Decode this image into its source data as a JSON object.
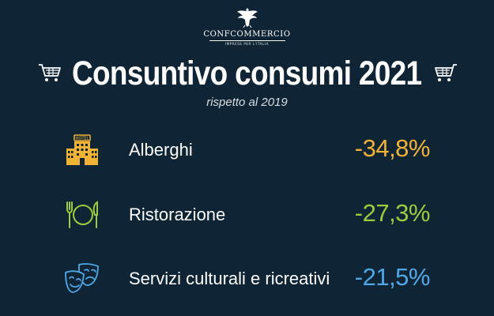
{
  "logo": {
    "brand": "CONFCOMMERCIO",
    "tagline": "IMPRESE PER L'ITALIA"
  },
  "header": {
    "title": "Consuntivo consumi 2021",
    "subtitle": "rispetto al 2019"
  },
  "rows": [
    {
      "label": "Alberghi",
      "value": "-34,8%",
      "color": "#f2b233",
      "icon": "hotel-icon"
    },
    {
      "label": "Ristorazione",
      "value": "-27,3%",
      "color": "#9ccc3b",
      "icon": "fork-plate-knife-icon"
    },
    {
      "label": "Servizi culturali e ricreativi",
      "value": "-21,5%",
      "color": "#4ea9e6",
      "icon": "theater-masks-icon"
    }
  ],
  "colors": {
    "background": "#0f2535",
    "text": "#ffffff"
  }
}
